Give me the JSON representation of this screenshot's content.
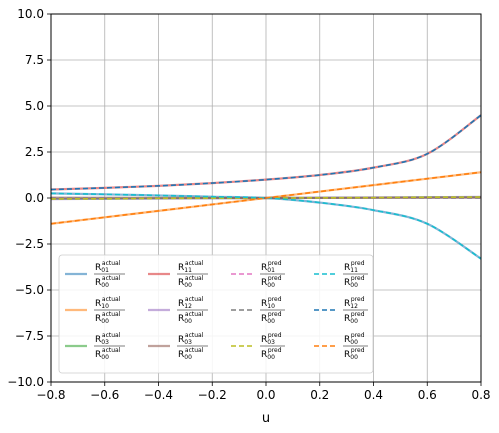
{
  "chart_data": {
    "type": "line",
    "xlabel": "u",
    "ylabel": "",
    "title": "",
    "xlim": [
      -0.8,
      0.8
    ],
    "ylim": [
      -10.0,
      10.0
    ],
    "grid": true,
    "legend_placement": "lower-left",
    "legend_columns": 4,
    "x_ticks": [
      {
        "value": -0.8,
        "label": "−0.8"
      },
      {
        "value": -0.6,
        "label": "−0.6"
      },
      {
        "value": -0.4,
        "label": "−0.4"
      },
      {
        "value": -0.2,
        "label": "−0.2"
      },
      {
        "value": 0.0,
        "label": "0.0"
      },
      {
        "value": 0.2,
        "label": "0.2"
      },
      {
        "value": 0.4,
        "label": "0.4"
      },
      {
        "value": 0.6,
        "label": "0.6"
      },
      {
        "value": 0.8,
        "label": "0.8"
      }
    ],
    "y_ticks": [
      {
        "value": 10.0,
        "label": "10.0"
      },
      {
        "value": 7.5,
        "label": "7.5"
      },
      {
        "value": 5.0,
        "label": "5.0"
      },
      {
        "value": 2.5,
        "label": "2.5"
      },
      {
        "value": 0.0,
        "label": "0.0"
      },
      {
        "value": -2.5,
        "label": "−2.5"
      },
      {
        "value": -5.0,
        "label": "−5.0"
      },
      {
        "value": -7.5,
        "label": "−7.5"
      },
      {
        "value": -10.0,
        "label": "−10.0"
      }
    ],
    "x": [
      -0.8,
      -0.6,
      -0.4,
      -0.2,
      0.0,
      0.2,
      0.4,
      0.6,
      0.8
    ],
    "series": [
      {
        "name": "R01 actual / R00 actual",
        "num": "01",
        "den": "00",
        "sup": "actual",
        "color": "#1f77b4",
        "alpha": 0.55,
        "dash": false,
        "width": 2.2,
        "values": [
          0.25,
          0.2,
          0.14,
          0.07,
          0.0,
          -0.25,
          -0.66,
          -1.4,
          -3.3
        ]
      },
      {
        "name": "R10 actual / R00 actual",
        "num": "10",
        "den": "00",
        "sup": "actual",
        "color": "#ff7f0e",
        "alpha": 0.55,
        "dash": false,
        "width": 2.2,
        "values": [
          -1.4,
          -1.05,
          -0.7,
          -0.35,
          0.0,
          0.35,
          0.7,
          1.05,
          1.4
        ]
      },
      {
        "name": "R03 actual / R00 actual",
        "num": "03",
        "den": "00",
        "sup": "actual",
        "color": "#2ca02c",
        "alpha": 0.55,
        "dash": false,
        "width": 2.2,
        "values": [
          -0.05,
          -0.04,
          -0.02,
          -0.01,
          0.0,
          0.01,
          0.02,
          0.04,
          0.05
        ]
      },
      {
        "name": "R11 actual / R00 actual",
        "num": "11",
        "den": "00",
        "sup": "actual",
        "color": "#d62728",
        "alpha": 0.55,
        "dash": false,
        "width": 2.2,
        "values": [
          0.46,
          0.55,
          0.66,
          0.81,
          1.0,
          1.25,
          1.65,
          2.4,
          4.5
        ]
      },
      {
        "name": "R12 actual / R00 actual",
        "num": "12",
        "den": "00",
        "sup": "actual",
        "color": "#9467bd",
        "alpha": 0.55,
        "dash": false,
        "width": 2.2,
        "values": [
          -0.06,
          -0.045,
          -0.03,
          -0.015,
          0.0,
          0.015,
          0.03,
          0.045,
          0.06
        ]
      },
      {
        "name": "R03 actual / R00 actual",
        "num": "03",
        "den": "00",
        "sup": "actual",
        "color": "#8c564b",
        "alpha": 0.55,
        "dash": false,
        "width": 2.2,
        "values": [
          0.02,
          0.015,
          0.01,
          0.005,
          0.0,
          0.005,
          0.01,
          0.015,
          0.02
        ]
      },
      {
        "name": "R01 pred / R00 pred",
        "num": "01",
        "den": "00",
        "sup": "pred",
        "color": "#e377c2",
        "alpha": 1.0,
        "dash": true,
        "width": 1.6,
        "values": [
          0.0,
          0.0,
          0.0,
          0.0,
          0.0,
          0.0,
          0.0,
          0.0,
          0.0
        ]
      },
      {
        "name": "R10 pred / R00 pred",
        "num": "10",
        "den": "00",
        "sup": "pred",
        "color": "#7f7f7f",
        "alpha": 1.0,
        "dash": true,
        "width": 1.6,
        "values": [
          0.0,
          0.0,
          0.0,
          0.0,
          0.0,
          0.0,
          0.0,
          0.0,
          0.0
        ]
      },
      {
        "name": "R03 pred / R00 pred",
        "num": "03",
        "den": "00",
        "sup": "pred",
        "color": "#bcbd22",
        "alpha": 1.0,
        "dash": true,
        "width": 1.6,
        "values": [
          -0.05,
          -0.04,
          -0.02,
          -0.01,
          0.0,
          0.01,
          0.02,
          0.04,
          0.05
        ]
      },
      {
        "name": "R11 pred / R00 pred",
        "num": "11",
        "den": "00",
        "sup": "pred",
        "color": "#17becf",
        "alpha": 1.0,
        "dash": true,
        "width": 1.6,
        "values": [
          0.25,
          0.2,
          0.14,
          0.07,
          0.0,
          -0.25,
          -0.66,
          -1.4,
          -3.3
        ]
      },
      {
        "name": "R12 pred / R00 pred",
        "num": "12",
        "den": "00",
        "sup": "pred",
        "color": "#1f77b4",
        "alpha": 1.0,
        "dash": true,
        "width": 1.6,
        "values": [
          0.46,
          0.55,
          0.66,
          0.81,
          1.0,
          1.25,
          1.65,
          2.4,
          4.5
        ]
      },
      {
        "name": "R00 pred / R00 pred",
        "num": "00",
        "den": "00",
        "sup": "pred",
        "color": "#ff7f0e",
        "alpha": 1.0,
        "dash": true,
        "width": 1.6,
        "values": [
          -1.4,
          -1.05,
          -0.7,
          -0.35,
          0.0,
          0.35,
          0.7,
          1.05,
          1.4
        ]
      }
    ]
  }
}
